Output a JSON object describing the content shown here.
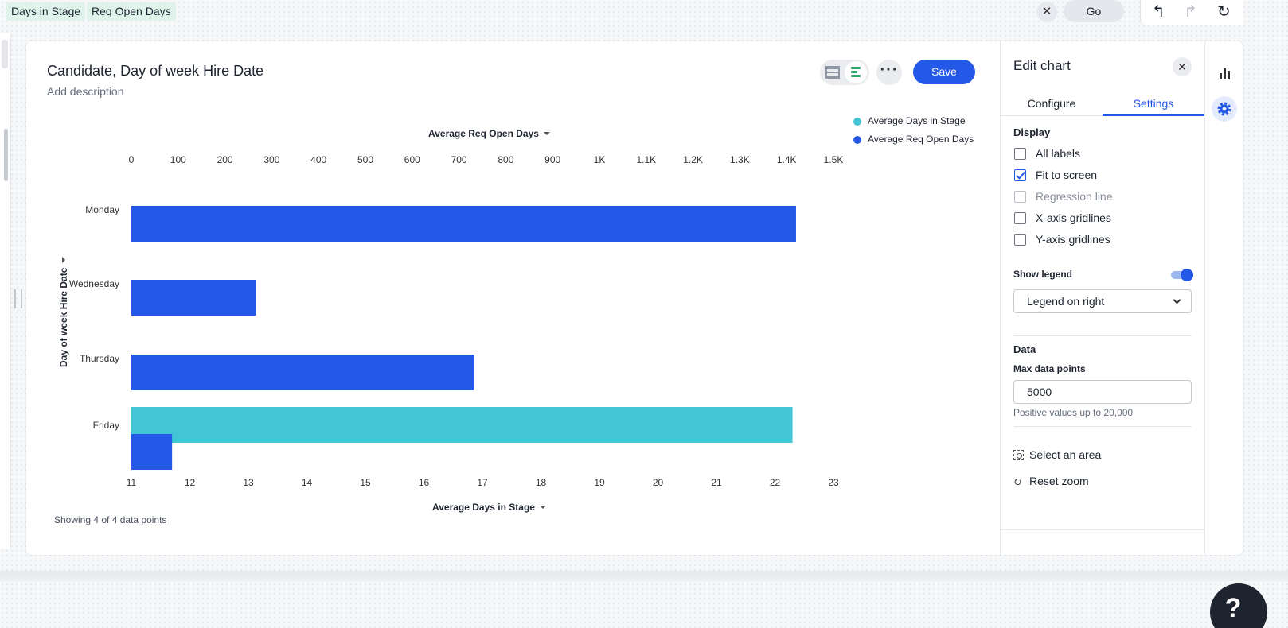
{
  "topbar": {
    "chips": [
      "Days in Stage",
      "Req Open Days"
    ],
    "clear_symbol": "✕",
    "go_label": "Go"
  },
  "card": {
    "title": "Candidate, Day of week Hire Date",
    "description_placeholder": "Add description",
    "more_symbol": "···",
    "save_label": "Save",
    "points_note": "Showing 4 of 4 data points"
  },
  "chart_data": {
    "type": "bar",
    "orientation": "horizontal",
    "categories": [
      "Monday",
      "Wednesday",
      "Thursday",
      "Friday"
    ],
    "series": [
      {
        "name": "Average Days in Stage",
        "color": "#43c5d5",
        "values": [
          null,
          null,
          null,
          22.3
        ]
      },
      {
        "name": "Average Req Open Days",
        "color": "#2359e6",
        "values": [
          1420,
          266,
          732,
          87
        ]
      }
    ],
    "top_axis": {
      "title": "Average Req Open Days",
      "ticks": [
        "0",
        "100",
        "200",
        "300",
        "400",
        "500",
        "600",
        "700",
        "800",
        "900",
        "1K",
        "1.1K",
        "1.2K",
        "1.3K",
        "1.4K",
        "1.5K"
      ],
      "range": [
        0,
        1500
      ]
    },
    "bottom_axis": {
      "title": "Average Days in Stage",
      "ticks": [
        "11",
        "12",
        "13",
        "14",
        "15",
        "16",
        "17",
        "18",
        "19",
        "20",
        "21",
        "22",
        "23"
      ],
      "range": [
        11,
        23
      ]
    },
    "y_axis_title": "Day of week Hire Date",
    "legend": "top-right",
    "grid": false
  },
  "panel": {
    "title": "Edit chart",
    "close_symbol": "✕",
    "tabs": [
      "Configure",
      "Settings"
    ],
    "display_title": "Display",
    "checkboxes": [
      {
        "label": "All labels",
        "checked": false,
        "disabled": false
      },
      {
        "label": "Fit to screen",
        "checked": true,
        "disabled": false
      },
      {
        "label": "Regression line",
        "checked": false,
        "disabled": true
      },
      {
        "label": "X-axis gridlines",
        "checked": false,
        "disabled": false
      },
      {
        "label": "Y-axis gridlines",
        "checked": false,
        "disabled": false
      }
    ],
    "show_legend_label": "Show legend",
    "show_legend_on": true,
    "legend_position": "Legend on right",
    "data_title": "Data",
    "max_points_label": "Max data points",
    "max_points_value": "5000",
    "max_points_hint": "Positive values up to 20,000",
    "select_area": "Select an area",
    "reset_zoom": "Reset zoom"
  },
  "help_symbol": "?"
}
